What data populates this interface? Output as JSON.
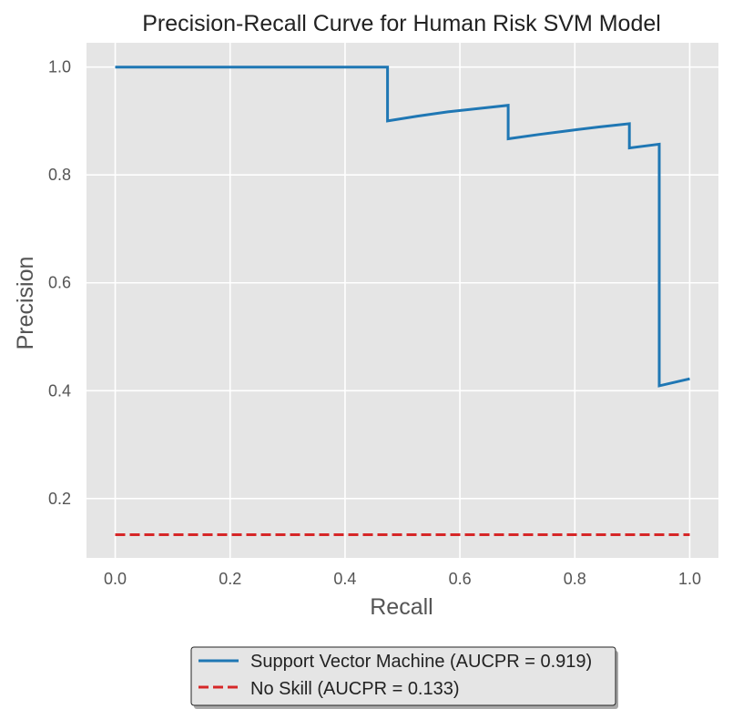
{
  "chart_data": {
    "type": "line",
    "title": "Precision-Recall Curve for Human Risk SVM Model",
    "xlabel": "Recall",
    "ylabel": "Precision",
    "xlim": [
      -0.05,
      1.05
    ],
    "ylim": [
      0.09,
      1.045
    ],
    "xticks": [
      0.0,
      0.2,
      0.4,
      0.6,
      0.8,
      1.0
    ],
    "yticks": [
      0.2,
      0.4,
      0.6,
      0.8,
      1.0
    ],
    "xtick_labels": [
      "0.0",
      "0.2",
      "0.4",
      "0.6",
      "0.8",
      "1.0"
    ],
    "ytick_labels": [
      "0.2",
      "0.4",
      "0.6",
      "0.8",
      "1.0"
    ],
    "grid": true,
    "background": "#e5e5e5",
    "legend_position": "bottom-center, below plot",
    "series": [
      {
        "name": "Support Vector Machine (AUCPR = 0.919)",
        "color": "#1f77b4",
        "style": "solid",
        "x": [
          0.0,
          0.474,
          0.474,
          0.526,
          0.579,
          0.632,
          0.684,
          0.684,
          0.737,
          0.789,
          0.842,
          0.895,
          0.895,
          0.947,
          0.947,
          1.0
        ],
        "y": [
          1.0,
          1.0,
          0.9,
          0.909,
          0.917,
          0.923,
          0.929,
          0.867,
          0.875,
          0.882,
          0.889,
          0.895,
          0.85,
          0.857,
          0.409,
          0.422
        ]
      },
      {
        "name": "No Skill (AUCPR = 0.133)",
        "color": "#d62728",
        "style": "dashed",
        "x": [
          0.0,
          1.0
        ],
        "y": [
          0.133,
          0.133
        ]
      }
    ]
  }
}
